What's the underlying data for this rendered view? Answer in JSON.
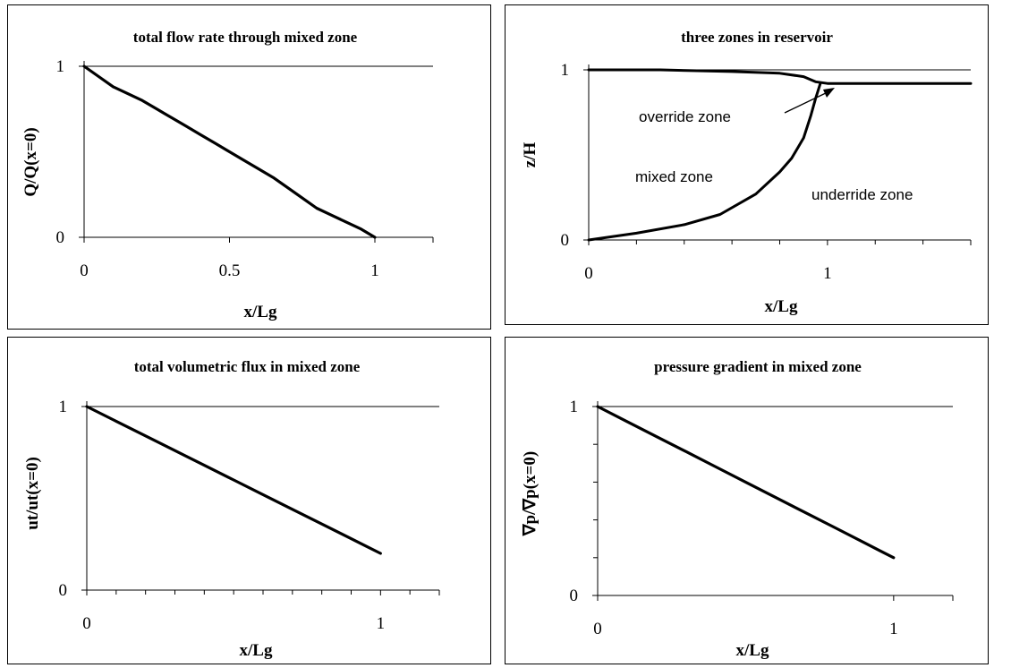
{
  "chart_data": [
    {
      "type": "line",
      "title": "total flow rate through mixed zone",
      "xlabel": "x/Lg",
      "ylabel": "Q/Q(x=0)",
      "xlim": [
        0,
        1.2
      ],
      "ylim": [
        0,
        1
      ],
      "xticks": [
        0,
        0.5,
        1
      ],
      "xtick_labels": [
        "0",
        "0.5",
        "1"
      ],
      "yticks": [
        0,
        1
      ],
      "ytick_labels": [
        "0",
        "1"
      ],
      "grid": "horizontal line at y=1",
      "series": [
        {
          "x": [
            0,
            0.05,
            0.1,
            0.15,
            0.2,
            0.25,
            0.3,
            0.35,
            0.4,
            0.45,
            0.5,
            0.55,
            0.6,
            0.65,
            0.7,
            0.75,
            0.8,
            0.85,
            0.9,
            0.95,
            1.0
          ],
          "y": [
            1.0,
            0.94,
            0.88,
            0.84,
            0.8,
            0.75,
            0.7,
            0.65,
            0.6,
            0.55,
            0.5,
            0.45,
            0.4,
            0.35,
            0.29,
            0.23,
            0.17,
            0.13,
            0.09,
            0.05,
            0.0
          ]
        }
      ]
    },
    {
      "type": "line",
      "title": "three zones in reservoir",
      "xlabel": "x/Lg",
      "ylabel": "z/H",
      "xlim": [
        0,
        1.6
      ],
      "ylim": [
        0,
        1
      ],
      "xticks": [
        0,
        1
      ],
      "xtick_labels": [
        "0",
        "1"
      ],
      "yticks": [
        0,
        1
      ],
      "ytick_labels": [
        "0",
        "1"
      ],
      "grid": "horizontal line at y=1",
      "annotations": [
        "override zone",
        "mixed zone",
        "underride zone"
      ],
      "series": [
        {
          "x": [
            0,
            0.3,
            0.6,
            0.8,
            0.9,
            0.95,
            1.0,
            1.6
          ],
          "y": [
            1.0,
            1.0,
            0.99,
            0.98,
            0.96,
            0.93,
            0.92,
            0.92
          ]
        },
        {
          "x": [
            0,
            0.2,
            0.4,
            0.55,
            0.7,
            0.8,
            0.85,
            0.9,
            0.93,
            0.95,
            0.97
          ],
          "y": [
            0.0,
            0.04,
            0.09,
            0.15,
            0.27,
            0.4,
            0.48,
            0.6,
            0.73,
            0.83,
            0.92
          ]
        }
      ]
    },
    {
      "type": "line",
      "title": "total volumetric flux in mixed zone",
      "xlabel": "x/Lg",
      "ylabel": "ut/ut(x=0)",
      "xlim": [
        0,
        1.2
      ],
      "ylim": [
        0,
        1
      ],
      "xticks": [
        0,
        1
      ],
      "xtick_labels": [
        "0",
        "1"
      ],
      "yticks": [
        0,
        1
      ],
      "ytick_labels": [
        "0",
        "1"
      ],
      "grid": "horizontal line at y=1",
      "series": [
        {
          "x": [
            0,
            0.1,
            0.2,
            0.3,
            0.4,
            0.5,
            0.6,
            0.7,
            0.8,
            0.9,
            0.95,
            1.0
          ],
          "y": [
            1.0,
            0.92,
            0.84,
            0.76,
            0.68,
            0.6,
            0.52,
            0.44,
            0.36,
            0.28,
            0.24,
            0.2
          ]
        }
      ]
    },
    {
      "type": "line",
      "title": "pressure gradient in mixed zone",
      "xlabel": "x/Lg",
      "ylabel": "∇p/∇p(x=0)",
      "xlim": [
        0,
        1.2
      ],
      "ylim": [
        0,
        1
      ],
      "xticks": [
        0,
        1
      ],
      "xtick_labels": [
        "0",
        "1"
      ],
      "yticks": [
        0,
        1
      ],
      "ytick_labels": [
        "0",
        "1"
      ],
      "grid": "horizontal line at y=1",
      "series": [
        {
          "x": [
            0,
            0.1,
            0.2,
            0.3,
            0.4,
            0.5,
            0.6,
            0.7,
            0.8,
            0.9,
            0.95,
            1.0
          ],
          "y": [
            1.0,
            0.92,
            0.84,
            0.76,
            0.68,
            0.6,
            0.52,
            0.44,
            0.36,
            0.28,
            0.24,
            0.2
          ]
        }
      ]
    }
  ]
}
